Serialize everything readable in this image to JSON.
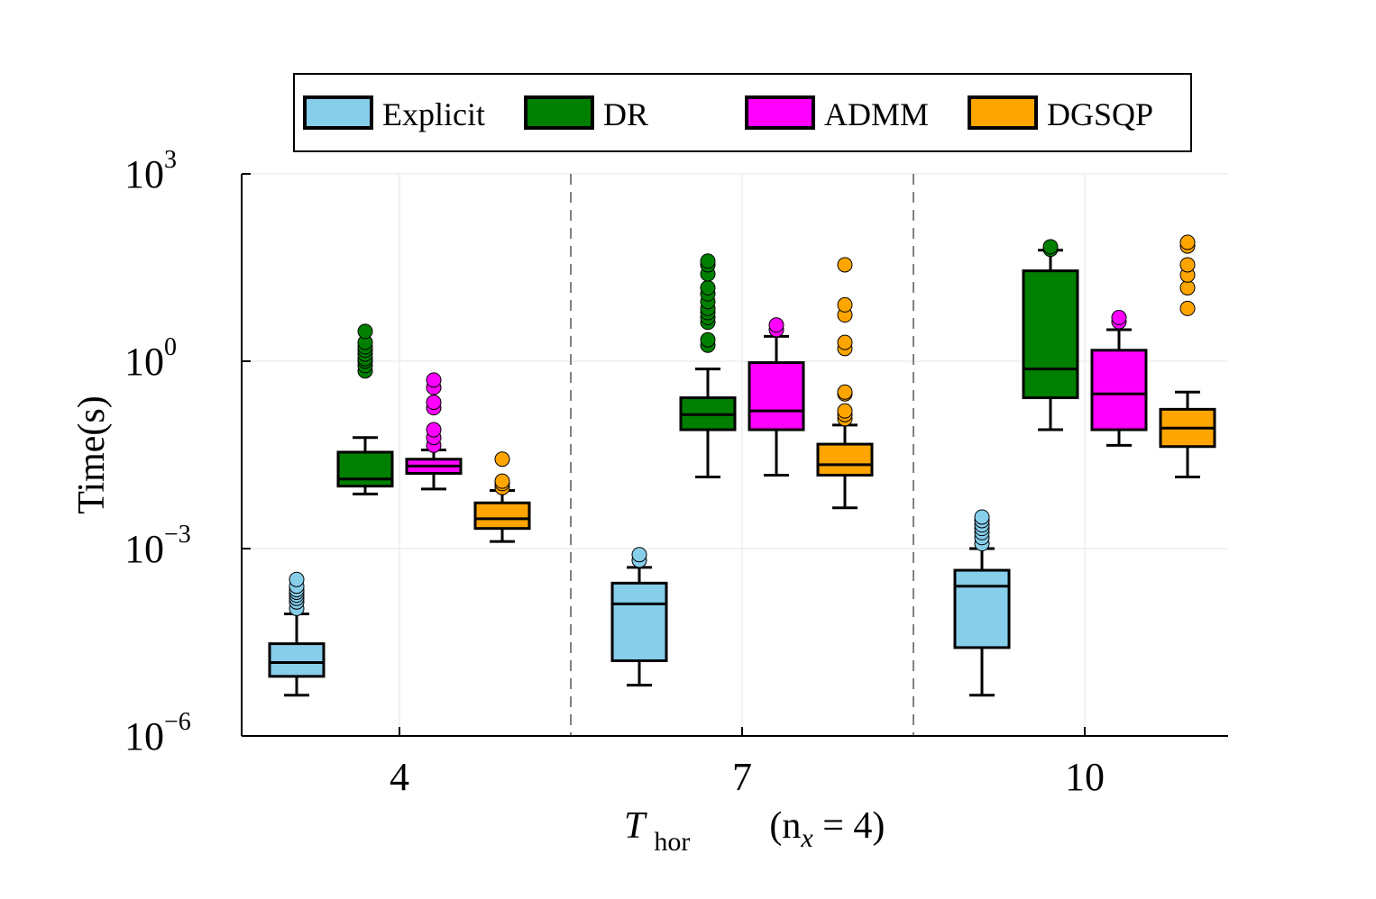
{
  "chart_data": {
    "type": "boxplot",
    "xlabel": {
      "main": "T",
      "subscript": "hor",
      "note_open": "(n",
      "note_sub": "x",
      "note_close": " = 4)"
    },
    "ylabel": "Time(s)",
    "yscale": "log10",
    "ylim": [
      1e-06,
      1000
    ],
    "yticks": [
      {
        "base": "10",
        "exp": "−6",
        "value": 1e-06
      },
      {
        "base": "10",
        "exp": "−3",
        "value": 0.001
      },
      {
        "base": "10",
        "exp": "0",
        "value": 1
      },
      {
        "base": "10",
        "exp": "3",
        "value": 1000
      }
    ],
    "categories": [
      "4",
      "7",
      "10"
    ],
    "legend_position": "top",
    "series": [
      {
        "name": "Explicit",
        "color": "#87CEEB",
        "boxes": [
          {
            "whislo": 4.5e-06,
            "q1": 9e-06,
            "med": 1.5e-05,
            "q3": 3e-05,
            "whishi": 9e-05,
            "fliers": [
              0.00011,
              0.00014,
              0.00016,
              0.00018,
              0.0002,
              0.00022,
              0.00025,
              0.00032
            ]
          },
          {
            "whislo": 6.5e-06,
            "q1": 1.6e-05,
            "med": 0.00013,
            "q3": 0.00028,
            "whishi": 0.0005,
            "fliers": [
              0.00065,
              0.0008
            ]
          },
          {
            "whislo": 4.5e-06,
            "q1": 2.6e-05,
            "med": 0.00025,
            "q3": 0.00045,
            "whishi": 0.001,
            "fliers": [
              0.0012,
              0.0015,
              0.0018,
              0.0021,
              0.0024,
              0.0028,
              0.0032
            ]
          }
        ]
      },
      {
        "name": "DR",
        "color": "#007F00",
        "boxes": [
          {
            "whislo": 0.0075,
            "q1": 0.01,
            "med": 0.013,
            "q3": 0.035,
            "whishi": 0.06,
            "fliers": [
              0.7,
              0.85,
              1.0,
              1.1,
              1.3,
              1.5,
              1.7,
              2.0,
              3.0
            ]
          },
          {
            "whislo": 0.014,
            "q1": 0.08,
            "med": 0.14,
            "q3": 0.26,
            "whishi": 0.75,
            "fliers": [
              1.8,
              2.2,
              4.2,
              5.0,
              6.0,
              7.0,
              9.0,
              12,
              15,
              25,
              35,
              40
            ]
          },
          {
            "whislo": 0.08,
            "q1": 0.26,
            "med": 0.75,
            "q3": 28,
            "whishi": 60,
            "fliers": [
              62,
              68
            ]
          }
        ]
      },
      {
        "name": "ADMM",
        "color": "#FF00FF",
        "boxes": [
          {
            "whislo": 0.009,
            "q1": 0.016,
            "med": 0.021,
            "q3": 0.027,
            "whishi": 0.038,
            "fliers": [
              0.045,
              0.06,
              0.08,
              0.18,
              0.22,
              0.38,
              0.5
            ]
          },
          {
            "whislo": 0.015,
            "q1": 0.08,
            "med": 0.16,
            "q3": 0.95,
            "whishi": 2.5,
            "fliers": [
              3.2,
              3.8
            ]
          },
          {
            "whislo": 0.045,
            "q1": 0.08,
            "med": 0.3,
            "q3": 1.5,
            "whishi": 3.2,
            "fliers": [
              4.3,
              5.0
            ]
          }
        ]
      },
      {
        "name": "DGSQP",
        "color": "#FFA500",
        "boxes": [
          {
            "whislo": 0.0013,
            "q1": 0.0021,
            "med": 0.003,
            "q3": 0.0054,
            "whishi": 0.0085,
            "fliers": [
              0.0095,
              0.011,
              0.012,
              0.027
            ]
          },
          {
            "whislo": 0.0045,
            "q1": 0.015,
            "med": 0.022,
            "q3": 0.047,
            "whishi": 0.095,
            "fliers": [
              0.12,
              0.14,
              0.16,
              0.3,
              0.32,
              1.6,
              2.0,
              5.5,
              8.0,
              35
            ]
          },
          {
            "whislo": 0.014,
            "q1": 0.043,
            "med": 0.085,
            "q3": 0.17,
            "whishi": 0.32,
            "fliers": [
              7.0,
              15,
              24,
              35,
              70,
              80
            ]
          }
        ]
      }
    ]
  }
}
